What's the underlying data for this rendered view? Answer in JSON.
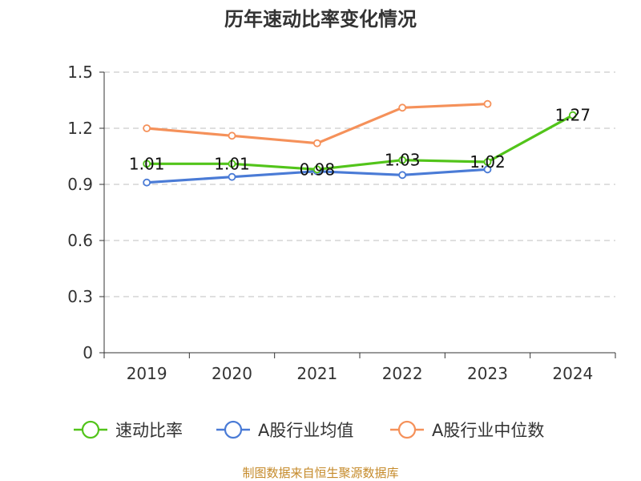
{
  "chart_data": {
    "type": "line",
    "title": "历年速动比率变化情况",
    "categories": [
      "2019",
      "2020",
      "2021",
      "2022",
      "2023",
      "2024"
    ],
    "ylim": [
      0,
      1.5
    ],
    "yticks": [
      "0",
      "0.3",
      "0.6",
      "0.9",
      "1.2",
      "1.5"
    ],
    "ytick_values": [
      0,
      0.3,
      0.6,
      0.9,
      1.2,
      1.5
    ],
    "grid": true,
    "legend_position": "bottom",
    "series": [
      {
        "name": "速动比率",
        "color": "#52c41a",
        "values": [
          1.01,
          1.01,
          0.98,
          1.03,
          1.02,
          1.27
        ],
        "labels": [
          "1.01",
          "1.01",
          "0.98",
          "1.03",
          "1.02",
          "1.27"
        ]
      },
      {
        "name": "A股行业均值",
        "color": "#4a7bd6",
        "values": [
          0.91,
          0.94,
          0.97,
          0.95,
          0.98,
          null
        ]
      },
      {
        "name": "A股行业中位数",
        "color": "#f5915a",
        "values": [
          1.2,
          1.16,
          1.12,
          1.31,
          1.33,
          null
        ]
      }
    ],
    "source": "制图数据来自恒生聚源数据库"
  }
}
